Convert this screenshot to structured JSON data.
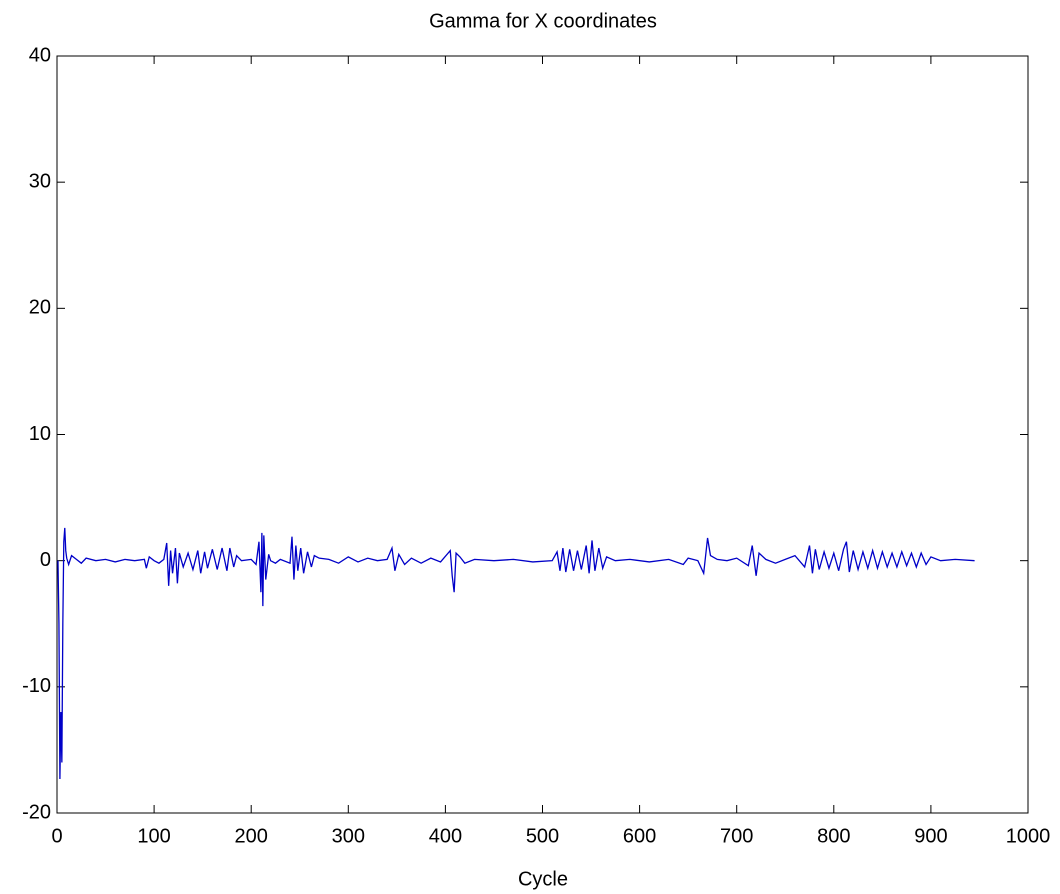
{
  "chart_data": {
    "type": "line",
    "title": "Gamma for X coordinates",
    "x_label": "Cycle",
    "x": [
      1,
      2,
      3,
      4,
      5,
      6,
      7,
      8,
      9,
      10,
      12,
      15,
      20,
      25,
      30,
      40,
      50,
      60,
      70,
      80,
      90,
      92,
      95,
      100,
      105,
      110,
      113,
      115,
      117,
      119,
      122,
      124,
      126,
      130,
      135,
      140,
      145,
      148,
      152,
      155,
      160,
      165,
      170,
      175,
      178,
      182,
      185,
      190,
      200,
      205,
      208,
      210,
      211,
      212,
      213,
      215,
      218,
      220,
      225,
      230,
      240,
      242,
      244,
      246,
      248,
      251,
      254,
      258,
      262,
      265,
      270,
      280,
      290,
      300,
      310,
      320,
      330,
      340,
      345,
      348,
      352,
      358,
      365,
      375,
      385,
      395,
      405,
      407,
      409,
      411,
      415,
      420,
      430,
      450,
      470,
      490,
      510,
      515,
      518,
      521,
      524,
      528,
      532,
      536,
      540,
      545,
      548,
      551,
      554,
      558,
      562,
      566,
      575,
      590,
      610,
      630,
      645,
      650,
      660,
      666,
      670,
      673,
      680,
      690,
      700,
      712,
      716,
      720,
      723,
      730,
      740,
      750,
      760,
      770,
      775,
      778,
      781,
      785,
      790,
      795,
      800,
      805,
      810,
      813,
      816,
      820,
      825,
      830,
      835,
      840,
      845,
      850,
      855,
      860,
      865,
      870,
      875,
      880,
      885,
      890,
      895,
      900,
      910,
      925,
      945
    ],
    "values": [
      0,
      -5,
      -17.3,
      -12,
      -16,
      -5,
      1.5,
      2.6,
      0.8,
      0.2,
      -0.3,
      0.4,
      0.1,
      -0.2,
      0.2,
      0,
      0.1,
      -0.1,
      0.1,
      0,
      0.1,
      -0.6,
      0.3,
      0,
      -0.2,
      0.1,
      1.4,
      -2,
      0.8,
      -1,
      1,
      -1.8,
      0.6,
      -0.5,
      0.6,
      -0.7,
      0.8,
      -1,
      0.7,
      -0.6,
      0.9,
      -0.7,
      1,
      -0.8,
      1,
      -0.5,
      0.4,
      0,
      0.1,
      -0.3,
      1.5,
      -2.5,
      2.2,
      -3.6,
      2,
      -1.5,
      0.5,
      0,
      -0.2,
      0.1,
      -0.2,
      1.9,
      -1.5,
      1.2,
      -0.8,
      1,
      -1,
      0.7,
      -0.5,
      0.4,
      0.2,
      0.1,
      -0.2,
      0.3,
      -0.1,
      0.2,
      0,
      0.1,
      1,
      -0.8,
      0.5,
      -0.3,
      0.2,
      -0.2,
      0.2,
      -0.1,
      0.8,
      -1.2,
      -2.5,
      0.6,
      0.3,
      -0.2,
      0.1,
      0,
      0.1,
      -0.1,
      0,
      0.7,
      -0.8,
      1,
      -0.9,
      0.9,
      -0.8,
      0.8,
      -0.7,
      1.2,
      -1,
      1.6,
      -0.8,
      1,
      -0.6,
      0.3,
      0,
      0.1,
      -0.1,
      0.1,
      -0.3,
      0.2,
      0,
      -1,
      1.8,
      0.4,
      0.1,
      0,
      0.2,
      -0.4,
      1.2,
      -1.2,
      0.6,
      0.1,
      -0.2,
      0.1,
      0.4,
      -0.5,
      1.2,
      -1,
      0.9,
      -0.7,
      0.7,
      -0.6,
      0.6,
      -0.8,
      0.9,
      1.5,
      -0.9,
      0.8,
      -0.7,
      0.7,
      -0.6,
      0.8,
      -0.6,
      0.7,
      -0.5,
      0.6,
      -0.5,
      0.7,
      -0.4,
      0.6,
      -0.5,
      0.6,
      -0.3,
      0.3,
      0,
      0.1,
      0
    ],
    "color": "#0000c8",
    "xlim": [
      0,
      1000
    ],
    "xticks": [
      0,
      100,
      200,
      300,
      400,
      500,
      600,
      700,
      800,
      900,
      1000
    ],
    "ylim": [
      -20,
      40
    ],
    "yticks": [
      -20,
      -10,
      0,
      10,
      20,
      30,
      40
    ],
    "grid": false
  }
}
